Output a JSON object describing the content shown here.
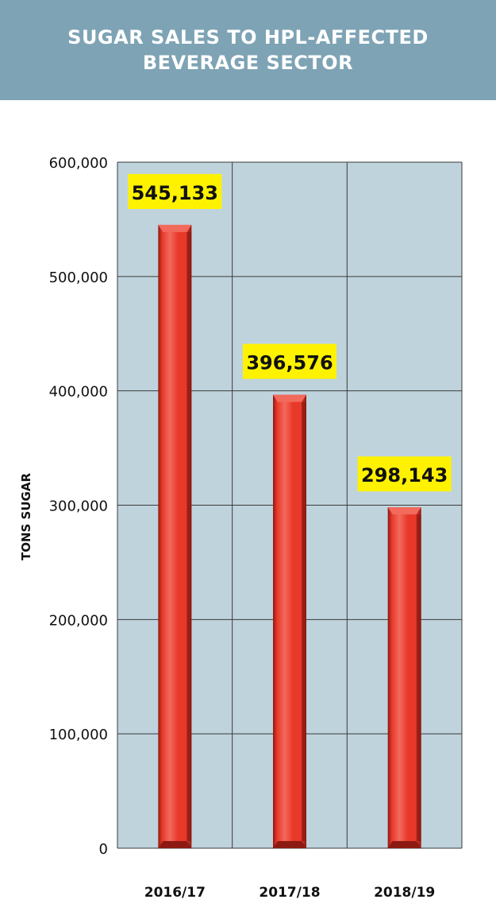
{
  "header": {
    "title_line1": "SUGAR SALES TO HPL-AFFECTED",
    "title_line2": "BEVERAGE SECTOR"
  },
  "chart_data": {
    "type": "bar",
    "title": "SUGAR SALES TO HPL-AFFECTED BEVERAGE SECTOR",
    "categories": [
      "2016/17",
      "2017/18",
      "2018/19"
    ],
    "values": [
      545133,
      396576,
      298143
    ],
    "value_labels": [
      "545,133",
      "396,576",
      "298,143"
    ],
    "xlabel": "",
    "ylabel": "TONS SUGAR",
    "ylim": [
      0,
      600000
    ],
    "yticks": [
      0,
      100000,
      200000,
      300000,
      400000,
      500000,
      600000
    ],
    "ytick_labels": [
      "0",
      "100,000",
      "200,000",
      "300,000",
      "400,000",
      "500,000",
      "600,000"
    ],
    "grid": true,
    "colors": {
      "plot_background": "#bfd3dd",
      "bar": "#e8382a",
      "bar_dark": "#8c1a12",
      "bar_light": "#f26a5c",
      "label_background": "#fff200",
      "grid": "#3a3a3a"
    }
  }
}
